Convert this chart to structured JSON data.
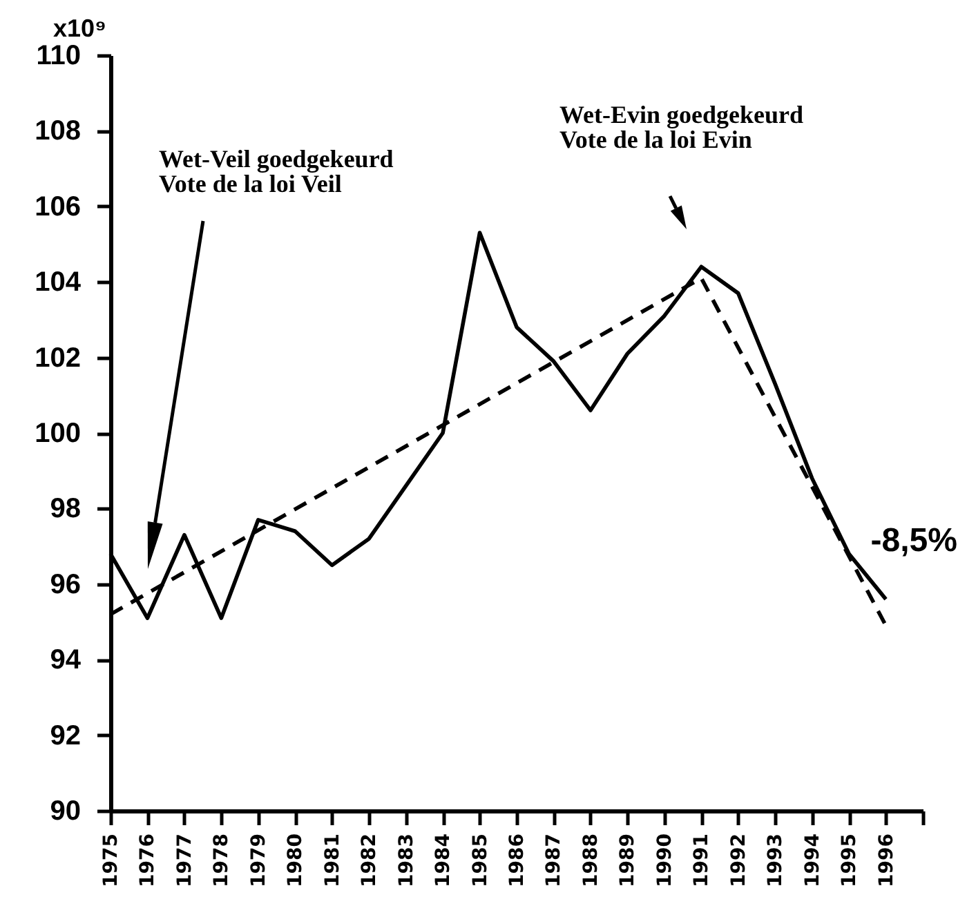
{
  "chart_data": {
    "type": "line",
    "ylabel": "x10⁹",
    "annotations": [
      "Wet-Veil goedgekeurd\nVote de la loi Veil",
      "Wet-Evin goedgekeurd\nVote de la loi Evin",
      "-8,5%"
    ],
    "x": [
      1975,
      1976,
      1977,
      1978,
      1979,
      1980,
      1981,
      1982,
      1983,
      1984,
      1985,
      1986,
      1987,
      1988,
      1989,
      1990,
      1991,
      1992,
      1993,
      1994,
      1995,
      1996
    ],
    "series": [
      {
        "color": "#000000",
        "values": [
          96.8,
          95.1,
          97.3,
          95.1,
          97.7,
          97.4,
          96.5,
          97.2,
          98.6,
          100.0,
          105.3,
          102.8,
          101.9,
          100.6,
          102.1,
          103.1,
          104.4,
          103.7,
          101.3,
          98.8,
          96.8,
          95.6
        ]
      },
      {
        "type": "line",
        "color": "#000000",
        "line_style": "dashed",
        "x": [
          1975,
          1991,
          1996
        ],
        "values": [
          95.2,
          104.1,
          94.9
        ]
      }
    ],
    "xlim": [
      1975,
      1997
    ],
    "xticks": [
      1975,
      1976,
      1977,
      1978,
      1979,
      1980,
      1981,
      1982,
      1983,
      1984,
      1985,
      1986,
      1987,
      1988,
      1989,
      1990,
      1991,
      1992,
      1993,
      1994,
      1995,
      1996,
      {
        "value": 1997,
        "label": null
      }
    ],
    "ylim": [
      90,
      110
    ],
    "yticks": [
      90,
      92,
      94,
      96,
      98,
      100,
      102,
      104,
      106,
      108,
      110
    ],
    "line_style": "solid"
  }
}
